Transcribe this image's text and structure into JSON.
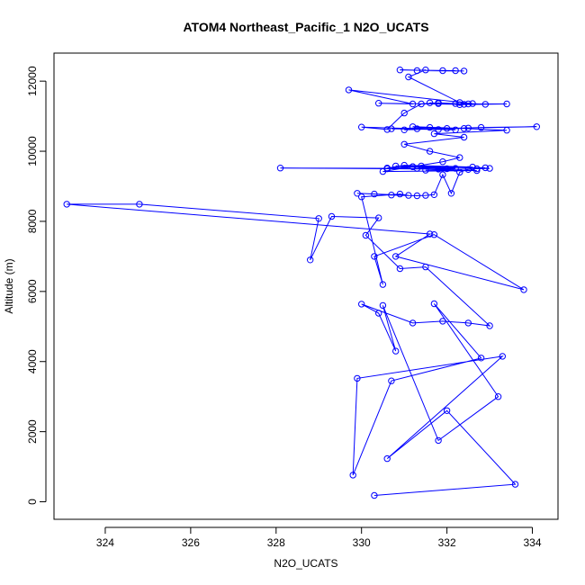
{
  "chart_data": {
    "type": "line",
    "title": "ATOM4 Northeast_Pacific_1 N2O_UCATS",
    "xlabel": "N2O_UCATS",
    "ylabel": "Altitude (m)",
    "xlim": [
      322.8,
      334.6
    ],
    "ylim": [
      -500,
      12800
    ],
    "x_ticks": [
      324,
      326,
      328,
      330,
      332,
      334
    ],
    "y_ticks": [
      0,
      2000,
      4000,
      6000,
      8000,
      10000,
      12000
    ],
    "x_tick_labels": [
      "324",
      "326",
      "328",
      "330",
      "332",
      "334"
    ],
    "y_tick_labels": [
      "0",
      "2000",
      "4000",
      "6000",
      "8000",
      "10000",
      "12000"
    ],
    "grid": false,
    "marker": "open-circle",
    "color": "#0000ff",
    "series": [
      {
        "x": [
          330.3,
          333.6,
          332.0,
          330.6,
          333.3,
          329.9,
          329.8,
          330.7,
          332.8,
          331.7,
          333.2,
          331.8,
          330.5,
          330.8,
          330.4,
          330.0,
          331.2,
          331.9,
          332.5,
          333.0,
          331.5,
          330.9,
          330.1,
          330.4,
          329.3,
          328.8,
          329.0,
          324.8,
          323.1,
          331.6,
          330.8,
          333.8,
          331.7,
          330.3,
          330.5,
          330.0,
          330.9,
          331.1,
          329.9,
          330.3,
          330.7,
          331.3,
          331.5,
          331.7,
          331.9,
          332.1,
          332.3,
          332.5,
          332.7,
          332.9,
          331.2,
          330.6,
          331.4,
          332.2,
          331.8,
          328.1,
          331.3,
          332.6,
          331.0,
          330.6,
          331.2,
          332.0,
          330.8,
          333.0,
          331.5,
          332.7,
          330.5,
          331.9,
          332.3,
          331.6,
          331.0,
          332.4,
          331.7,
          333.4,
          332.4,
          331.2,
          332.0,
          331.0,
          332.8,
          334.1,
          331.3,
          332.5,
          331.8,
          330.7,
          331.6,
          332.2,
          330.0,
          330.6,
          331.0,
          331.4,
          331.8,
          332.2,
          332.4,
          330.4,
          331.2,
          329.7,
          332.6,
          332.9,
          331.8,
          331.6,
          332.3,
          333.4,
          332.5,
          332.3,
          331.1,
          331.5,
          331.3,
          332.4,
          331.9,
          330.9,
          332.2
        ],
        "y": [
          180,
          500,
          2600,
          1230,
          4150,
          3520,
          760,
          3450,
          4100,
          5650,
          3000,
          1750,
          5600,
          4300,
          5380,
          5640,
          5100,
          5150,
          5100,
          5020,
          6700,
          6650,
          7600,
          8100,
          8140,
          6900,
          8080,
          8490,
          8490,
          7640,
          7000,
          6050,
          7620,
          7000,
          6200,
          8700,
          8780,
          8740,
          8800,
          8780,
          8750,
          8730,
          8740,
          8760,
          9330,
          8800,
          9400,
          9480,
          9500,
          9530,
          9560,
          9500,
          9580,
          9510,
          9490,
          9520,
          9510,
          9550,
          9600,
          9520,
          9560,
          9500,
          9580,
          9510,
          9460,
          9450,
          9420,
          9700,
          9820,
          10000,
          10200,
          10400,
          10500,
          10600,
          10650,
          10700,
          10650,
          10610,
          10680,
          10700,
          10640,
          10660,
          10620,
          10640,
          10680,
          10610,
          10690,
          10620,
          11090,
          11350,
          11380,
          11360,
          11340,
          11370,
          11350,
          11750,
          11360,
          11340,
          11360,
          11380,
          11330,
          11350,
          11350,
          11390,
          12120,
          12320,
          12300,
          12290,
          12300,
          12320,
          12300
        ]
      }
    ]
  }
}
